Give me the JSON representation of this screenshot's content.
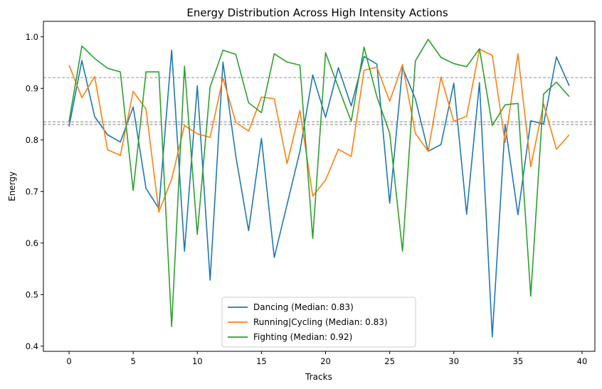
{
  "chart_data": {
    "type": "line",
    "title": "Energy Distribution Across High Intensity Actions",
    "xlabel": "Tracks",
    "ylabel": "Energy",
    "xlim": [
      -2,
      41
    ],
    "ylim": [
      0.39,
      1.03
    ],
    "xticks": [
      0,
      5,
      10,
      15,
      20,
      25,
      30,
      35,
      40
    ],
    "yticks": [
      0.4,
      0.5,
      0.6,
      0.7,
      0.8,
      0.9,
      1.0
    ],
    "ytick_labels": [
      "0.4",
      "0.5",
      "0.6",
      "0.7",
      "0.8",
      "0.9",
      "1.0"
    ],
    "grid": false,
    "legend_position": "bottom-center",
    "reference_lines": [
      {
        "y": 0.83,
        "style": "dashed",
        "color": "#808080"
      },
      {
        "y": 0.835,
        "style": "dashed",
        "color": "#808080"
      },
      {
        "y": 0.921,
        "style": "dashed",
        "color": "#808080"
      }
    ],
    "x": [
      0,
      1,
      2,
      3,
      4,
      5,
      6,
      7,
      8,
      9,
      10,
      11,
      12,
      13,
      14,
      15,
      16,
      17,
      18,
      19,
      20,
      21,
      22,
      23,
      24,
      25,
      26,
      27,
      28,
      29,
      30,
      31,
      32,
      33,
      34,
      35,
      36,
      37,
      38,
      39
    ],
    "series": [
      {
        "name": "Dancing (Median: 0.83)",
        "color": "#1f77b4",
        "values": [
          0.826,
          0.954,
          0.845,
          0.81,
          0.796,
          0.864,
          0.706,
          0.667,
          0.974,
          0.584,
          0.905,
          0.528,
          0.951,
          0.769,
          0.624,
          0.803,
          0.572,
          0.675,
          0.778,
          0.926,
          0.844,
          0.94,
          0.866,
          0.962,
          0.947,
          0.677,
          0.94,
          0.88,
          0.778,
          0.791,
          0.91,
          0.656,
          0.911,
          0.418,
          0.83,
          0.655,
          0.837,
          0.831,
          0.961,
          0.905
        ]
      },
      {
        "name": "Running|Cycling (Median: 0.83)",
        "color": "#ff7f0e",
        "values": [
          0.945,
          0.882,
          0.923,
          0.781,
          0.77,
          0.894,
          0.86,
          0.66,
          0.724,
          0.828,
          0.812,
          0.805,
          0.92,
          0.834,
          0.817,
          0.883,
          0.88,
          0.754,
          0.857,
          0.691,
          0.722,
          0.782,
          0.768,
          0.935,
          0.941,
          0.875,
          0.946,
          0.813,
          0.778,
          0.922,
          0.836,
          0.846,
          0.976,
          0.964,
          0.795,
          0.967,
          0.748,
          0.87,
          0.782,
          0.81
        ]
      },
      {
        "name": "Fighting (Median: 0.92)",
        "color": "#2ca02c",
        "values": [
          0.836,
          0.982,
          0.958,
          0.939,
          0.932,
          0.702,
          0.932,
          0.932,
          0.438,
          0.943,
          0.617,
          0.903,
          0.974,
          0.966,
          0.872,
          0.853,
          0.967,
          0.951,
          0.945,
          0.609,
          0.969,
          0.902,
          0.836,
          0.98,
          0.884,
          0.813,
          0.584,
          0.953,
          0.995,
          0.96,
          0.948,
          0.942,
          0.977,
          0.828,
          0.868,
          0.871,
          0.497,
          0.889,
          0.912,
          0.884
        ]
      }
    ]
  }
}
